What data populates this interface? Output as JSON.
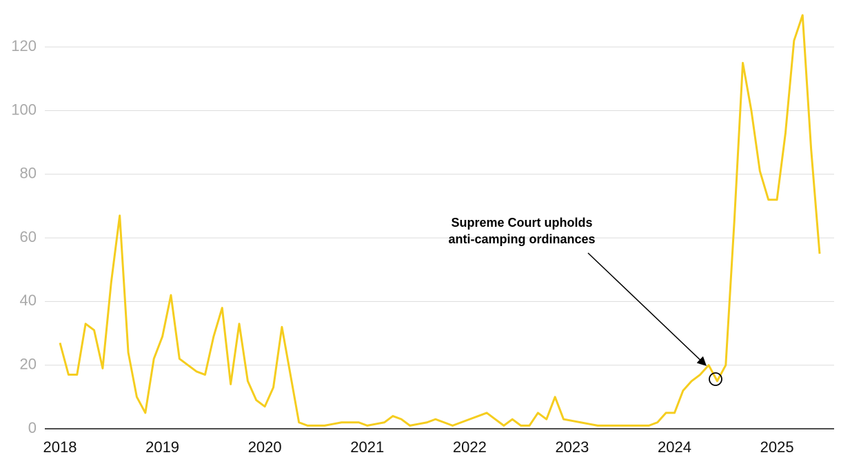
{
  "chart_data": {
    "type": "line",
    "categories": [
      "2018",
      null,
      null,
      null,
      null,
      null,
      null,
      null,
      null,
      null,
      null,
      null,
      "2019",
      null,
      null,
      null,
      null,
      null,
      null,
      null,
      null,
      null,
      null,
      null,
      "2020",
      null,
      null,
      null,
      null,
      null,
      null,
      null,
      null,
      null,
      null,
      null,
      "2021",
      null,
      null,
      null,
      null,
      null,
      null,
      null,
      null,
      null,
      null,
      null,
      "2022",
      null,
      null,
      null,
      null,
      null,
      null,
      null,
      null,
      null,
      null,
      null,
      "2023",
      null,
      null,
      null,
      null,
      null,
      null,
      null,
      null,
      null,
      null,
      null,
      "2024",
      null,
      null,
      null,
      null,
      null,
      null,
      null,
      null,
      null,
      null,
      null,
      "2025",
      null,
      null,
      null,
      null,
      null
    ],
    "series": [
      {
        "color": "#f5cd1f",
        "values": [
          27,
          17,
          17,
          33,
          31,
          19,
          46,
          67,
          24,
          10,
          5,
          22,
          29,
          42,
          22,
          20,
          18,
          17,
          29,
          38,
          14,
          33,
          15,
          9,
          7,
          13,
          32,
          17,
          2,
          1,
          1,
          1,
          1.5,
          2,
          2,
          2,
          1,
          1.5,
          2,
          4,
          3,
          1,
          1.5,
          2,
          3,
          2,
          1,
          2,
          3,
          4,
          5,
          3,
          1,
          3,
          1,
          1,
          5,
          3,
          10,
          3,
          2.5,
          2,
          1.5,
          1,
          1,
          1,
          1,
          1,
          1,
          1,
          2,
          5,
          5,
          12,
          15,
          17,
          20,
          15,
          20,
          65,
          115,
          100,
          81,
          72,
          72,
          93,
          122,
          130,
          88,
          55
        ]
      }
    ],
    "ylim": [
      0,
      130
    ],
    "yticks": [
      0,
      20,
      40,
      60,
      80,
      100,
      120
    ],
    "grid": true,
    "annotation": [
      "Supreme Court upholds",
      "anti-camping ordinances"
    ]
  }
}
